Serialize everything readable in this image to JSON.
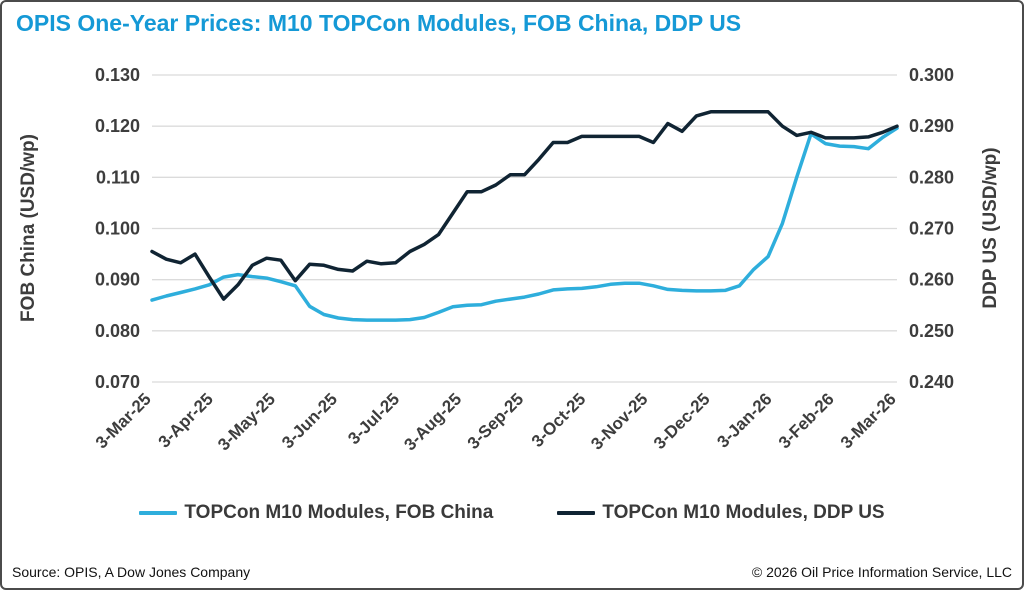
{
  "title": "OPIS One-Year Prices: M10 TOPCon Modules, FOB China, DDP US",
  "colors": {
    "title": "#1599D6",
    "fob_china_line": "#2EAEDC",
    "ddp_us_line": "#102433",
    "grid": "#DBDBDB",
    "axis_text": "#3D3D3D",
    "border": "#4B4B4B"
  },
  "chart_data": {
    "type": "line",
    "title": "OPIS One-Year Prices: M10 TOPCon Modules, FOB China, DDP US",
    "x_unit": "weekly points from 3-Mar-25 to 3-Mar-26",
    "x_ticks": [
      "3-Mar-25",
      "3-Apr-25",
      "3-May-25",
      "3-Jun-25",
      "3-Jul-25",
      "3-Aug-25",
      "3-Sep-25",
      "3-Oct-25",
      "3-Nov-25",
      "3-Dec-25",
      "3-Jan-26",
      "3-Feb-26",
      "3-Mar-26"
    ],
    "left_axis": {
      "label": "FOB China (USD/wp)",
      "min": 0.07,
      "max": 0.13,
      "ticks": [
        "0.130",
        "0.120",
        "0.110",
        "0.100",
        "0.090",
        "0.080",
        "0.070"
      ]
    },
    "right_axis": {
      "label": "DDP US (USD/wp)",
      "min": 0.24,
      "max": 0.3,
      "ticks": [
        "0.300",
        "0.290",
        "0.280",
        "0.270",
        "0.260",
        "0.250",
        "0.240"
      ]
    },
    "grid": true,
    "legend_position": "bottom",
    "series": [
      {
        "name": "TOPCon M10 Modules, FOB China",
        "axis": "left",
        "color": "#2EAEDC",
        "values": [
          0.086,
          0.0868,
          0.0875,
          0.0882,
          0.089,
          0.0905,
          0.091,
          0.0906,
          0.0903,
          0.0896,
          0.0888,
          0.0848,
          0.0832,
          0.0825,
          0.0822,
          0.0821,
          0.0821,
          0.0821,
          0.0822,
          0.0826,
          0.0836,
          0.0847,
          0.085,
          0.0851,
          0.0858,
          0.0862,
          0.0866,
          0.0872,
          0.088,
          0.0882,
          0.0883,
          0.0886,
          0.0891,
          0.0893,
          0.0893,
          0.0888,
          0.0881,
          0.0879,
          0.0878,
          0.0878,
          0.0879,
          0.0888,
          0.092,
          0.0945,
          0.101,
          0.11,
          0.1185,
          0.1166,
          0.1161,
          0.116,
          0.1156,
          0.1178,
          0.1196
        ]
      },
      {
        "name": "TOPCon M10 Modules, DDP US",
        "axis": "right",
        "color": "#102433",
        "values": [
          0.2655,
          0.264,
          0.2633,
          0.265,
          0.2605,
          0.2562,
          0.259,
          0.2628,
          0.2642,
          0.2638,
          0.2598,
          0.263,
          0.2628,
          0.262,
          0.2617,
          0.2636,
          0.2631,
          0.2633,
          0.2655,
          0.2669,
          0.2688,
          0.273,
          0.2772,
          0.2772,
          0.2785,
          0.2805,
          0.2805,
          0.2835,
          0.2868,
          0.2868,
          0.288,
          0.288,
          0.288,
          0.288,
          0.288,
          0.2868,
          0.2905,
          0.289,
          0.292,
          0.2928,
          0.2928,
          0.2928,
          0.2928,
          0.2928,
          0.29,
          0.2882,
          0.2888,
          0.2877,
          0.2877,
          0.2877,
          0.2879,
          0.2888,
          0.29
        ]
      }
    ]
  },
  "legend": [
    {
      "label": "TOPCon M10 Modules, FOB China",
      "color": "#2EAEDC"
    },
    {
      "label": "TOPCon M10 Modules, DDP US",
      "color": "#102433"
    }
  ],
  "footer": {
    "source": "Source: OPIS, A Dow Jones Company",
    "copyright": "© 2026 Oil Price Information Service, LLC"
  }
}
